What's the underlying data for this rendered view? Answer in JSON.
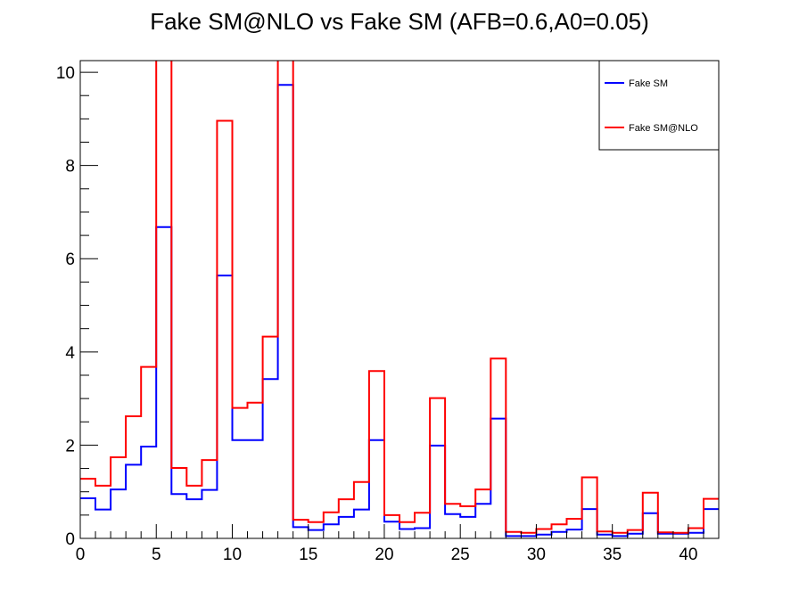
{
  "chart_data": {
    "type": "line",
    "title": "Fake SM@NLO vs Fake SM (AFB=0.6,A0=0.05)",
    "xlabel": "",
    "ylabel": "",
    "xlim": [
      0,
      42
    ],
    "ylim": [
      0,
      10.25
    ],
    "x_ticks": [
      0,
      5,
      10,
      15,
      20,
      25,
      30,
      35,
      40
    ],
    "y_ticks": [
      0,
      2,
      4,
      6,
      8,
      10
    ],
    "bin_edges": [
      0,
      1,
      2,
      3,
      4,
      5,
      6,
      7,
      8,
      9,
      10,
      11,
      12,
      13,
      14,
      15,
      16,
      17,
      18,
      19,
      20,
      21,
      22,
      23,
      24,
      25,
      26,
      27,
      28,
      29,
      30,
      31,
      32,
      33,
      34,
      35,
      36,
      37,
      38,
      39,
      40,
      41,
      42
    ],
    "grid": false,
    "legend_position": "top-right",
    "series": [
      {
        "name": "Fake SM",
        "color": "#0000ff",
        "values": [
          0.86,
          0.62,
          1.05,
          1.58,
          1.97,
          6.68,
          0.95,
          0.84,
          1.04,
          5.64,
          2.11,
          2.11,
          3.42,
          9.73,
          0.24,
          0.18,
          0.3,
          0.46,
          0.62,
          2.11,
          0.36,
          0.2,
          0.22,
          1.99,
          0.52,
          0.46,
          0.74,
          2.57,
          0.05,
          0.05,
          0.08,
          0.14,
          0.19,
          0.63,
          0.08,
          0.05,
          0.1,
          0.54,
          0.1,
          0.1,
          0.12,
          0.63
        ]
      },
      {
        "name": "Fake SM@NLO",
        "color": "#ff0000",
        "values": [
          1.28,
          1.13,
          1.74,
          2.62,
          3.68,
          10.5,
          1.51,
          1.13,
          1.68,
          8.96,
          2.8,
          2.91,
          4.33,
          10.5,
          0.4,
          0.35,
          0.56,
          0.84,
          1.21,
          3.59,
          0.5,
          0.35,
          0.55,
          3.01,
          0.74,
          0.69,
          1.05,
          3.86,
          0.14,
          0.12,
          0.2,
          0.3,
          0.42,
          1.31,
          0.15,
          0.12,
          0.18,
          0.98,
          0.13,
          0.12,
          0.22,
          0.85
        ]
      }
    ]
  }
}
